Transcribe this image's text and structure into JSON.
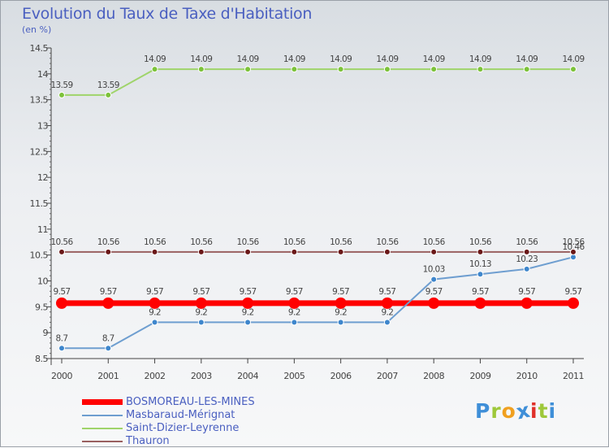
{
  "title": "Evolution du Taux de Taxe d'Habitation",
  "unit": "(en %)",
  "logo": [
    "P",
    "r",
    "o",
    "x",
    "i",
    "t",
    "i"
  ],
  "colors": {
    "text": "#4a5fc0",
    "logo": [
      "#3f8fd8",
      "#9ec83a",
      "#f0a020",
      "#3f8fd8",
      "#e0302a",
      "#9ec83a",
      "#3f8fd8"
    ]
  },
  "chart_data": {
    "type": "line",
    "categories": [
      "2000",
      "2001",
      "2002",
      "2003",
      "2004",
      "2005",
      "2006",
      "2007",
      "2008",
      "2009",
      "2010",
      "2011"
    ],
    "ylim": [
      8.5,
      14.5
    ],
    "yticks": [
      "8.5",
      "9",
      "9.5",
      "10",
      "10.5",
      "11",
      "11.5",
      "12",
      "12.5",
      "13",
      "13.5",
      "14",
      "14.5"
    ],
    "grid": false,
    "legend_position": "bottom-left",
    "series": [
      {
        "name": "BOSMOREAU-LES-MINES",
        "color": "#ff0000",
        "values": [
          9.57,
          9.57,
          9.57,
          9.57,
          9.57,
          9.57,
          9.57,
          9.57,
          9.57,
          9.57,
          9.57,
          9.57
        ],
        "labels": [
          "9.57",
          "9.57",
          "9.57",
          "9.57",
          "9.57",
          "9.57",
          "9.57",
          "9.57",
          "9.57",
          "9.57",
          "9.57",
          "9.57"
        ],
        "thick": true
      },
      {
        "name": "Masbaraud-Mérignat",
        "color": "#6e9ed0",
        "marker": "#3e86cc",
        "values": [
          8.7,
          8.7,
          9.2,
          9.2,
          9.2,
          9.2,
          9.2,
          9.2,
          10.03,
          10.13,
          10.23,
          10.46
        ],
        "labels": [
          "8.7",
          "8.7",
          "9.2",
          "9.2",
          "9.2",
          "9.2",
          "9.2",
          "9.2",
          "10.03",
          "10.13",
          "10.23",
          "10.46"
        ]
      },
      {
        "name": "Saint-Dizier-Leyrenne",
        "color": "#9fd46a",
        "marker": "#7cc23a",
        "values": [
          13.59,
          13.59,
          14.09,
          14.09,
          14.09,
          14.09,
          14.09,
          14.09,
          14.09,
          14.09,
          14.09,
          14.09
        ],
        "labels": [
          "13.59",
          "13.59",
          "14.09",
          "14.09",
          "14.09",
          "14.09",
          "14.09",
          "14.09",
          "14.09",
          "14.09",
          "14.09",
          "14.09"
        ]
      },
      {
        "name": "Thauron",
        "color": "#9a6060",
        "marker": "#6a1818",
        "values": [
          10.56,
          10.56,
          10.56,
          10.56,
          10.56,
          10.56,
          10.56,
          10.56,
          10.56,
          10.56,
          10.56,
          10.56
        ],
        "labels": [
          "10.56",
          "10.56",
          "10.56",
          "10.56",
          "10.56",
          "10.56",
          "10.56",
          "10.56",
          "10.56",
          "10.56",
          "10.56",
          "10.56"
        ]
      }
    ]
  }
}
